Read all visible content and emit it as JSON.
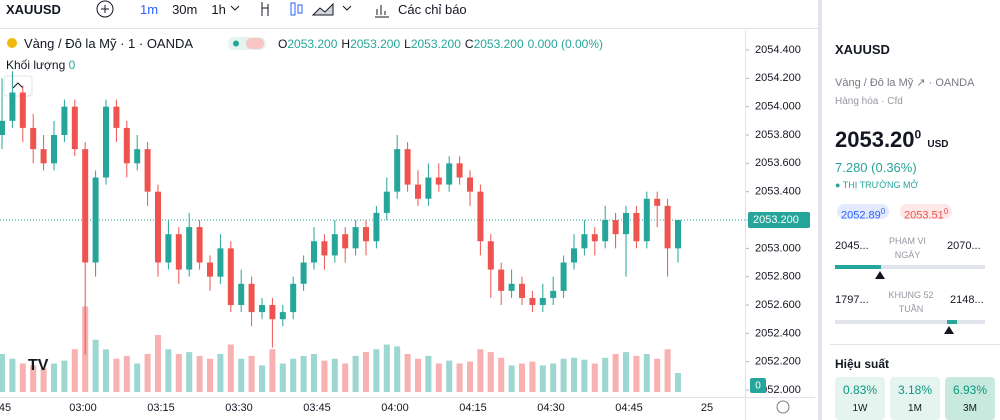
{
  "toolbar": {
    "symbol": "XAUUSD",
    "intervals": [
      "1m",
      "30m",
      "1h"
    ],
    "indicators": "Các chỉ báo"
  },
  "legend": {
    "title": "Vàng / Đô la Mỹ · 1 · OANDA",
    "o_label": "O",
    "o": "2053.200",
    "h_label": "H",
    "h": "2053.200",
    "l_label": "L",
    "l": "2053.200",
    "c_label": "C",
    "c": "2053.200",
    "change": "0.000 (0.00%)",
    "volume_label": "Khối lượng",
    "volume": "0"
  },
  "chart": {
    "type": "candlestick",
    "ylim": [
      2051.965,
      2054.541
    ],
    "yticks": [
      {
        "value": 2054.4,
        "label": "2054.400"
      },
      {
        "value": 2054.2,
        "label": "2054.200"
      },
      {
        "value": 2054.0,
        "label": "2054.000"
      },
      {
        "value": 2053.8,
        "label": "2053.800"
      },
      {
        "value": 2053.6,
        "label": "2053.600"
      },
      {
        "value": 2053.4,
        "label": "2053.400"
      },
      {
        "value": 2053.2,
        "label": "2053.200"
      },
      {
        "value": 2053.0,
        "label": "2053.000"
      },
      {
        "value": 2052.8,
        "label": "2052.800"
      },
      {
        "value": 2052.6,
        "label": "2052.600"
      },
      {
        "value": 2052.4,
        "label": "2052.400"
      },
      {
        "value": 2052.2,
        "label": "2052.200"
      },
      {
        "value": 2052.0,
        "label": "2052.000"
      }
    ],
    "last_price": {
      "value": 2053.2,
      "label": "2053.200"
    },
    "volume_axis_label": "0",
    "time_labels": [
      "45",
      "03:00",
      "03:15",
      "03:30",
      "03:45",
      "04:00",
      "04:15",
      "04:30",
      "04:45",
      "25"
    ],
    "up_color": "#26a69a",
    "down_color": "#ef5350",
    "candles": [
      [
        2053.8,
        2054.2,
        2053.7,
        2053.9,
        40
      ],
      [
        2053.9,
        2054.25,
        2053.85,
        2054.1,
        35
      ],
      [
        2054.1,
        2054.15,
        2053.75,
        2053.85,
        30
      ],
      [
        2053.85,
        2053.95,
        2053.6,
        2053.7,
        28
      ],
      [
        2053.7,
        2053.8,
        2053.55,
        2053.6,
        25
      ],
      [
        2053.6,
        2053.9,
        2053.55,
        2053.8,
        30
      ],
      [
        2053.8,
        2054.05,
        2053.75,
        2054.0,
        33
      ],
      [
        2054.0,
        2054.05,
        2053.65,
        2053.7,
        45
      ],
      [
        2053.7,
        2053.75,
        2052.25,
        2052.9,
        90
      ],
      [
        2052.9,
        2053.55,
        2052.8,
        2053.5,
        55
      ],
      [
        2053.5,
        2054.05,
        2053.45,
        2054.0,
        45
      ],
      [
        2054.0,
        2054.05,
        2053.75,
        2053.85,
        35
      ],
      [
        2053.85,
        2053.9,
        2053.5,
        2053.6,
        38
      ],
      [
        2053.6,
        2053.8,
        2053.55,
        2053.7,
        30
      ],
      [
        2053.7,
        2053.75,
        2053.3,
        2053.4,
        40
      ],
      [
        2053.4,
        2053.45,
        2052.8,
        2052.9,
        60
      ],
      [
        2052.9,
        2053.2,
        2052.85,
        2053.1,
        45
      ],
      [
        2053.1,
        2053.15,
        2052.75,
        2052.85,
        40
      ],
      [
        2052.85,
        2053.25,
        2052.8,
        2053.15,
        42
      ],
      [
        2053.15,
        2053.2,
        2052.85,
        2052.9,
        38
      ],
      [
        2052.9,
        2052.95,
        2052.7,
        2052.8,
        35
      ],
      [
        2052.8,
        2053.1,
        2052.75,
        2053.0,
        40
      ],
      [
        2053.0,
        2053.05,
        2052.55,
        2052.6,
        50
      ],
      [
        2052.6,
        2052.85,
        2052.55,
        2052.75,
        35
      ],
      [
        2052.75,
        2052.8,
        2052.45,
        2052.55,
        38
      ],
      [
        2052.55,
        2052.65,
        2052.5,
        2052.6,
        28
      ],
      [
        2052.6,
        2052.65,
        2052.3,
        2052.5,
        45
      ],
      [
        2052.5,
        2052.6,
        2052.45,
        2052.55,
        30
      ],
      [
        2052.55,
        2052.8,
        2052.5,
        2052.75,
        35
      ],
      [
        2052.75,
        2052.95,
        2052.7,
        2052.9,
        38
      ],
      [
        2052.9,
        2053.15,
        2052.85,
        2053.05,
        40
      ],
      [
        2053.05,
        2053.1,
        2052.85,
        2052.95,
        33
      ],
      [
        2052.95,
        2053.2,
        2052.9,
        2053.1,
        35
      ],
      [
        2053.1,
        2053.15,
        2052.9,
        2053.0,
        30
      ],
      [
        2053.0,
        2053.2,
        2052.95,
        2053.15,
        38
      ],
      [
        2053.15,
        2053.2,
        2052.95,
        2053.05,
        42
      ],
      [
        2053.05,
        2053.3,
        2053.0,
        2053.25,
        45
      ],
      [
        2053.25,
        2053.5,
        2053.2,
        2053.4,
        50
      ],
      [
        2053.4,
        2053.8,
        2053.35,
        2053.7,
        48
      ],
      [
        2053.7,
        2053.75,
        2053.4,
        2053.45,
        40
      ],
      [
        2053.45,
        2053.55,
        2053.3,
        2053.35,
        35
      ],
      [
        2053.35,
        2053.6,
        2053.3,
        2053.5,
        38
      ],
      [
        2053.5,
        2053.6,
        2053.4,
        2053.45,
        30
      ],
      [
        2053.45,
        2053.65,
        2053.4,
        2053.6,
        33
      ],
      [
        2053.6,
        2053.65,
        2053.45,
        2053.5,
        30
      ],
      [
        2053.5,
        2053.55,
        2053.3,
        2053.4,
        32
      ],
      [
        2053.4,
        2053.45,
        2052.95,
        2053.05,
        45
      ],
      [
        2053.05,
        2053.1,
        2052.65,
        2052.85,
        42
      ],
      [
        2052.85,
        2052.9,
        2052.6,
        2052.7,
        36
      ],
      [
        2052.7,
        2052.85,
        2052.65,
        2052.75,
        28
      ],
      [
        2052.75,
        2052.8,
        2052.6,
        2052.65,
        30
      ],
      [
        2052.65,
        2052.7,
        2052.55,
        2052.6,
        32
      ],
      [
        2052.6,
        2052.75,
        2052.55,
        2052.65,
        28
      ],
      [
        2052.65,
        2052.8,
        2052.6,
        2052.7,
        30
      ],
      [
        2052.7,
        2052.95,
        2052.65,
        2052.9,
        35
      ],
      [
        2052.9,
        2053.1,
        2052.85,
        2053.0,
        36
      ],
      [
        2053.0,
        2053.2,
        2052.95,
        2053.1,
        34
      ],
      [
        2053.1,
        2053.15,
        2052.95,
        2053.05,
        30
      ],
      [
        2053.05,
        2053.3,
        2053.0,
        2053.2,
        36
      ],
      [
        2053.2,
        2053.25,
        2053.0,
        2053.1,
        40
      ],
      [
        2053.1,
        2053.3,
        2052.8,
        2053.25,
        42
      ],
      [
        2053.25,
        2053.3,
        2053.0,
        2053.05,
        38
      ],
      [
        2053.05,
        2053.4,
        2053.0,
        2053.35,
        40
      ],
      [
        2053.35,
        2053.4,
        2053.15,
        2053.3,
        35
      ],
      [
        2053.3,
        2053.35,
        2052.8,
        2053.0,
        45
      ],
      [
        2053.0,
        2053.2,
        2052.9,
        2053.2,
        20
      ]
    ]
  },
  "sidebar": {
    "symbol": "XAUUSD",
    "name": "Vàng / Đô la Mỹ",
    "exchange": "· OANDA",
    "category": "Hàng hóa · Cfd",
    "price": "2053.20",
    "price_sup": "0",
    "currency": "USD",
    "change": "7.280 (0.36%)",
    "status": "● THỊ TRƯỜNG MỞ",
    "bid": "2052.89",
    "bid_sup": "0",
    "ask": "2053.51",
    "ask_sup": "0",
    "day_low": "2045...",
    "day_label": "PHẠM VI NGÀY",
    "day_high": "2070...",
    "year_low": "1797...",
    "year_label": "KHUNG 52 TUẦN",
    "year_high": "2148...",
    "performance_title": "Hiệu suất",
    "performance": [
      {
        "value": "0.83%",
        "period": "1W"
      },
      {
        "value": "3.18%",
        "period": "1M"
      },
      {
        "value": "6.93%",
        "period": "3M"
      }
    ]
  }
}
